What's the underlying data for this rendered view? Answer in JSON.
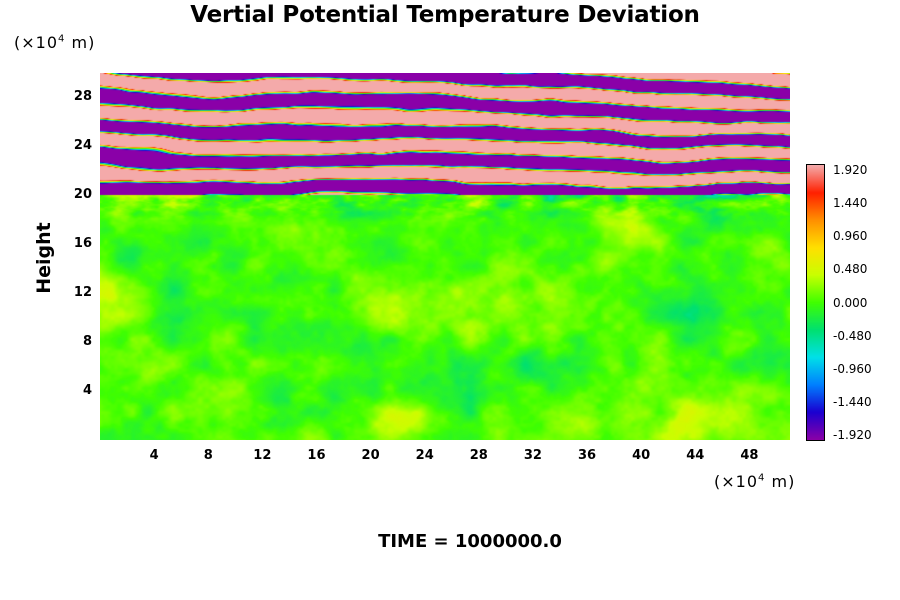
{
  "title": "Vertial Potential Temperature Deviation",
  "footer": "TIME = 1000000.0",
  "chart_data": {
    "type": "heatmap",
    "title": "Vertial Potential Temperature Deviation",
    "ylabel": "Height",
    "xlabel": "",
    "x_unit": {
      "prefix": "(×10",
      "exp": "4",
      "suffix": " m)"
    },
    "y_unit": {
      "prefix": "(×10",
      "exp": "4",
      "suffix": " m)"
    },
    "xlim": [
      0,
      51
    ],
    "ylim": [
      0,
      30
    ],
    "x_ticks": [
      "4",
      "8",
      "12",
      "16",
      "20",
      "24",
      "28",
      "32",
      "36",
      "40",
      "44",
      "48"
    ],
    "y_ticks": [
      "4",
      "8",
      "12",
      "16",
      "20",
      "24",
      "28"
    ],
    "colorbar": {
      "labels": [
        "1.920",
        "1.440",
        "0.960",
        "0.480",
        "0.000",
        "-0.480",
        "-0.960",
        "-1.440",
        "-1.920"
      ],
      "range": [
        -1.92,
        1.92
      ],
      "stops": [
        "#8a00a8",
        "#1a00d0",
        "#0080ff",
        "#00e0e8",
        "#00e070",
        "#40ff00",
        "#c8ff00",
        "#ffe000",
        "#ff9000",
        "#ff2000",
        "#f4aaaa"
      ]
    },
    "field_description": {
      "stratified_layer_above_height": 20,
      "lower_region_typical_value": 0.1
    }
  }
}
